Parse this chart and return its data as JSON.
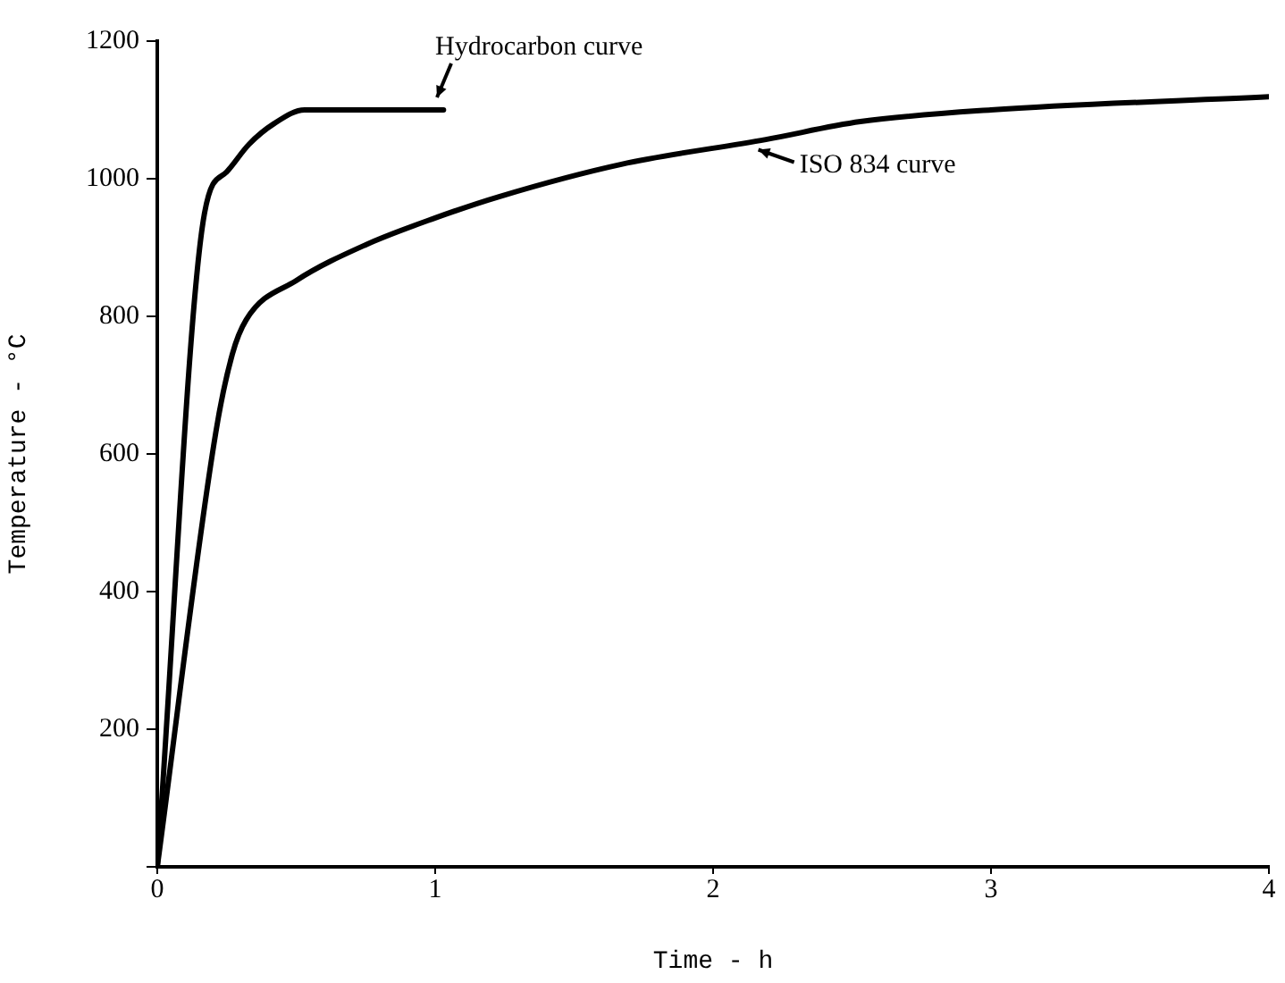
{
  "chart_data": {
    "type": "line",
    "xlabel": "Time - h",
    "ylabel": "Temperature - °C",
    "xlim": [
      0,
      4
    ],
    "xticks": [
      0,
      1,
      2,
      3,
      4
    ],
    "ylim": [
      0,
      1200
    ],
    "yticks": [
      {
        "value": 0,
        "label": null
      },
      200,
      400,
      600,
      800,
      1000,
      1200
    ],
    "grid": false,
    "legend": false,
    "marker": "none",
    "line_style": "solid",
    "series": [
      {
        "color": "#000000",
        "x": [
          0,
          0.17,
          0.25,
          0.33,
          0.42,
          0.53,
          1.03
        ],
        "values": [
          0,
          950,
          1010,
          1050,
          1080,
          1100,
          1100
        ]
      },
      {
        "color": "#000000",
        "x": [
          0,
          0.21,
          0.27,
          0.32,
          0.5,
          0.75,
          1.0,
          1.23,
          1.67,
          2.19,
          2.53,
          3.0,
          4.0
        ],
        "values": [
          0,
          630,
          745,
          795,
          852,
          904,
          943,
          974,
          1021,
          1057,
          1083,
          1100,
          1119
        ]
      }
    ],
    "annotations": [
      {
        "text": "Hydrocarbon curve",
        "x": 1.0,
        "y": 1100
      },
      {
        "text": "ISO 834 curve",
        "x": 2.15,
        "y": 1050
      }
    ]
  }
}
